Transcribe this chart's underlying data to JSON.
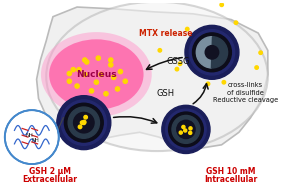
{
  "bg_color": "#ffffff",
  "cell_fill": "#eeeeee",
  "cell_edge": "#bbbbbb",
  "nucleus_pink": "#ff66aa",
  "nucleus_glow": "#ff99cc",
  "micelle_blue_outer": "#1a2060",
  "micelle_blue_mid": "#2a3080",
  "micelle_dark_core": "#1a1a2a",
  "micelle_gray_half": "#8899aa",
  "micelle_inner_teal": "#3a5060",
  "drug_yellow": "#ffd700",
  "arrow_black": "#111111",
  "arrow_red": "#cc2200",
  "text_red": "#cc0000",
  "text_black": "#111111",
  "zoom_edge": "#4488cc",
  "chain_blue": "#3366cc",
  "crosslink_red": "#cc2222",
  "label_extracellular_1": "Extracellular",
  "label_extracellular_2": "GSH 2 μM",
  "label_intracellular_1": "Intracellular",
  "label_intracellular_2": "GSH 10 mM",
  "label_gsh": "GSH",
  "label_gssg": "GSSG",
  "label_reductive_1": "Reductive cleavage",
  "label_reductive_2": "of disulfide",
  "label_reductive_3": "cross-links",
  "label_mtx": "MTX release",
  "label_nucleus": "Nucleus",
  "label_nh1": "NH",
  "label_nh2": "NH"
}
